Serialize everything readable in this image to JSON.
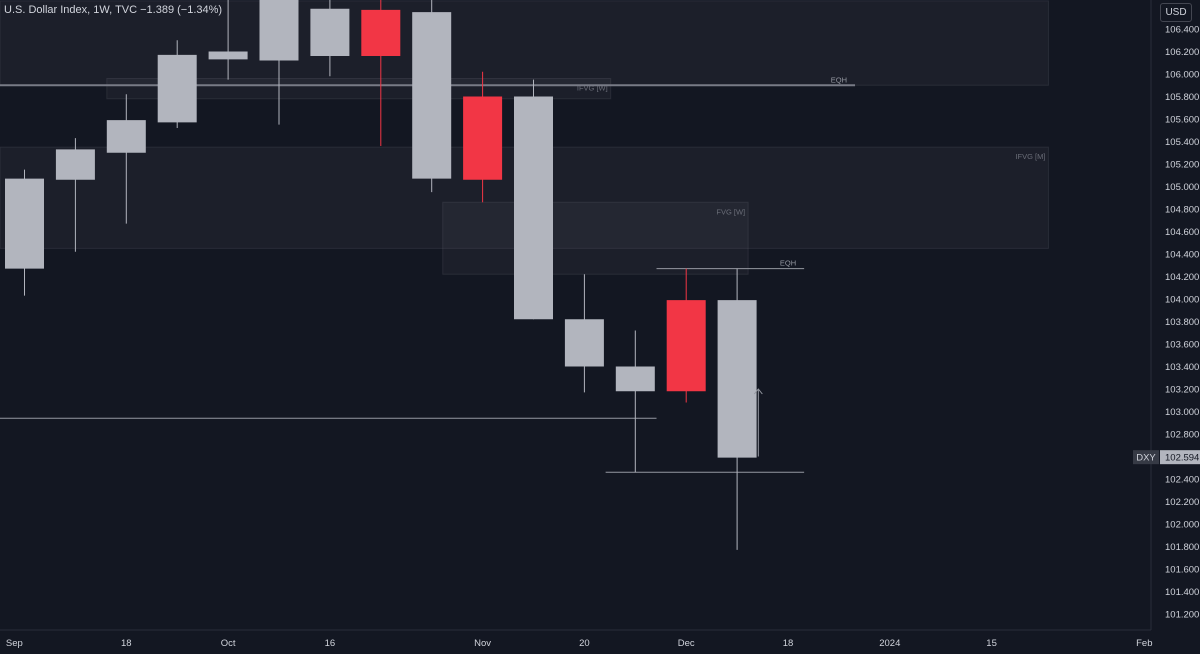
{
  "header": {
    "title": "U.S. Dollar Index, 1W, TVC  −1.389 (−1.34%)",
    "currency_button": "USD"
  },
  "colors": {
    "background": "#131722",
    "up": "#b2b5be",
    "down": "#f23645",
    "zone_fill": "#1c1f2b",
    "line": "#9598a1",
    "axis_text": "#d1d4dc"
  },
  "price_label": {
    "symbol": "DXY",
    "value": "102.594",
    "price": 102.594
  },
  "chart_data": {
    "type": "candlestick",
    "symbol": "DXY",
    "timeframe": "1W",
    "y_ticks": [
      106.4,
      106.2,
      106.0,
      105.8,
      105.6,
      105.4,
      105.2,
      105.0,
      104.8,
      104.6,
      104.4,
      104.2,
      104.0,
      103.8,
      103.6,
      103.4,
      103.2,
      103.0,
      102.8,
      102.6,
      102.4,
      102.2,
      102.0,
      101.8,
      101.6,
      101.4,
      101.2
    ],
    "y_tick_labels": [
      "106.400",
      "106.200",
      "106.000",
      "105.800",
      "105.600",
      "105.400",
      "105.200",
      "105.000",
      "104.800",
      "104.600",
      "104.400",
      "104.200",
      "104.000",
      "103.800",
      "103.600",
      "103.400",
      "103.200",
      "103.000",
      "102.800",
      "102.600",
      "102.400",
      "102.200",
      "102.000",
      "101.800",
      "101.600",
      "101.400",
      "101.200"
    ],
    "x_tick_labels": [
      {
        "label": "Sep",
        "week": -0.2
      },
      {
        "label": "18",
        "week": 2
      },
      {
        "label": "Oct",
        "week": 4
      },
      {
        "label": "16",
        "week": 6
      },
      {
        "label": "Nov",
        "week": 9
      },
      {
        "label": "20",
        "week": 11
      },
      {
        "label": "Dec",
        "week": 13
      },
      {
        "label": "18",
        "week": 15
      },
      {
        "label": "2024",
        "week": 17
      },
      {
        "label": "15",
        "week": 19
      },
      {
        "label": "Feb",
        "week": 22
      }
    ],
    "candles": [
      {
        "week": 0,
        "o": 104.27,
        "h": 105.15,
        "l": 104.03,
        "c": 105.07
      },
      {
        "week": 1,
        "o": 105.06,
        "h": 105.43,
        "l": 104.42,
        "c": 105.33
      },
      {
        "week": 2,
        "o": 105.3,
        "h": 105.82,
        "l": 104.67,
        "c": 105.59
      },
      {
        "week": 3,
        "o": 105.57,
        "h": 106.3,
        "l": 105.52,
        "c": 106.17
      },
      {
        "week": 4,
        "o": 106.13,
        "h": 106.8,
        "l": 105.95,
        "c": 106.2
      },
      {
        "week": 5,
        "o": 106.12,
        "h": 107.0,
        "l": 105.55,
        "c": 107.0
      },
      {
        "week": 6,
        "o": 106.16,
        "h": 106.8,
        "l": 105.98,
        "c": 106.58
      },
      {
        "week": 7,
        "o": 106.57,
        "h": 106.85,
        "l": 105.36,
        "c": 106.16
      },
      {
        "week": 8,
        "o": 105.07,
        "h": 106.8,
        "l": 104.95,
        "c": 106.55
      },
      {
        "week": 9,
        "o": 105.8,
        "h": 106.02,
        "l": 104.86,
        "c": 105.06
      },
      {
        "week": 10,
        "o": 103.82,
        "h": 105.95,
        "l": 103.82,
        "c": 105.8
      },
      {
        "week": 11,
        "o": 103.4,
        "h": 104.22,
        "l": 103.17,
        "c": 103.82
      },
      {
        "week": 12,
        "o": 103.18,
        "h": 103.72,
        "l": 102.46,
        "c": 103.4
      },
      {
        "week": 13,
        "o": 103.99,
        "h": 104.27,
        "l": 103.08,
        "c": 103.18
      },
      {
        "week": 14,
        "o": 102.59,
        "h": 104.27,
        "l": 101.77,
        "c": 103.99
      }
    ],
    "zones": [
      {
        "label": "",
        "x0": -0.5,
        "x1": 20.5,
        "y0": 105.9,
        "y1": 106.65
      },
      {
        "label": "IFVG [W]",
        "x0": 2.0,
        "x1": 11.9,
        "y0": 105.78,
        "y1": 105.96
      },
      {
        "label": "IFVG [M]",
        "x0": -0.5,
        "x1": 20.5,
        "y0": 104.45,
        "y1": 105.35
      },
      {
        "label": "FVG [W]",
        "x0": 8.6,
        "x1": 14.6,
        "y0": 104.22,
        "y1": 104.86
      }
    ],
    "levels": [
      {
        "label": "EQH",
        "x0": -0.5,
        "x1": 16.7,
        "y": 105.9
      },
      {
        "label": "EQH",
        "x0": 12.8,
        "x1": 15.7,
        "y": 104.27
      },
      {
        "label": "",
        "x0": -0.5,
        "x1": 12.8,
        "y": 102.94
      },
      {
        "label": "",
        "x0": 11.8,
        "x1": 15.7,
        "y": 102.46
      }
    ],
    "arrow": {
      "week": 14.8,
      "from": 102.6,
      "to": 103.2
    }
  }
}
